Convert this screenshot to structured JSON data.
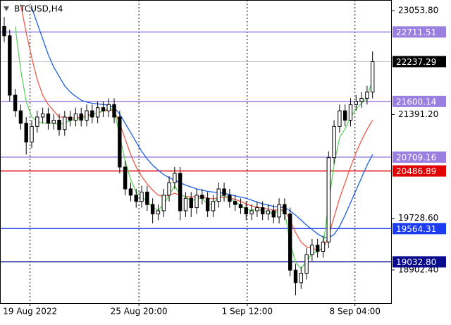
{
  "chart_data": {
    "type": "candlestick",
    "title": "BTCUSD,H4",
    "open": [
      22800,
      22650,
      21700,
      21450,
      21250,
      20950,
      21200,
      21350,
      21400,
      21250,
      21300,
      21150,
      21350,
      21300,
      21400,
      21300,
      21450,
      21350,
      21500,
      21450,
      21550,
      21350,
      20550,
      20200,
      20100,
      20000,
      20150,
      19950,
      19800,
      19850,
      20100,
      20300,
      20450,
      19850,
      20050,
      19900,
      20100,
      20050,
      19850,
      20000,
      20200,
      20100,
      20000,
      19950,
      19900,
      19800,
      19850,
      19900,
      19800,
      19850,
      19750,
      19950,
      19800,
      18900,
      18700,
      18850,
      19150,
      19300,
      19200,
      19350,
      20700,
      21200,
      21450,
      21300,
      21550,
      21600,
      21650,
      21750
    ],
    "high": [
      22950,
      22750,
      21800,
      21550,
      21350,
      21300,
      21450,
      21500,
      21500,
      21400,
      21400,
      21450,
      21450,
      21500,
      21500,
      21550,
      21550,
      21600,
      21600,
      21650,
      21650,
      21450,
      20650,
      20300,
      20200,
      20250,
      20250,
      20050,
      19950,
      20200,
      20400,
      20550,
      20550,
      20150,
      20150,
      20200,
      20200,
      20150,
      20100,
      20300,
      20300,
      20200,
      20100,
      20050,
      20000,
      19950,
      20000,
      20000,
      19950,
      19950,
      20050,
      20050,
      19900,
      19000,
      18950,
      19250,
      19400,
      19400,
      19450,
      20800,
      21300,
      21550,
      21550,
      21650,
      21700,
      21750,
      21850,
      22400
    ],
    "low": [
      22550,
      21600,
      21350,
      21150,
      20750,
      20850,
      21100,
      21250,
      21150,
      21150,
      21050,
      21050,
      21200,
      21200,
      21200,
      21200,
      21250,
      21250,
      21350,
      21350,
      21250,
      20450,
      20100,
      20000,
      19900,
      19900,
      19850,
      19650,
      19700,
      19750,
      20000,
      20200,
      19700,
      19750,
      19750,
      19800,
      19950,
      19750,
      19750,
      19900,
      20000,
      19900,
      19850,
      19800,
      19700,
      19700,
      19750,
      19700,
      19700,
      19650,
      19650,
      19700,
      18800,
      18500,
      18600,
      18750,
      19050,
      19100,
      19100,
      19250,
      20600,
      21100,
      21200,
      21200,
      21450,
      21500,
      21550,
      21650
    ],
    "close": [
      22650,
      21700,
      21450,
      21250,
      20950,
      21200,
      21350,
      21400,
      21250,
      21300,
      21150,
      21350,
      21300,
      21400,
      21300,
      21450,
      21350,
      21500,
      21450,
      21550,
      21350,
      20550,
      20200,
      20100,
      20000,
      20150,
      19950,
      19800,
      19850,
      20100,
      20300,
      20450,
      19850,
      20050,
      19900,
      20100,
      20050,
      19850,
      20000,
      20200,
      20100,
      20000,
      19950,
      19900,
      19800,
      19850,
      19900,
      19800,
      19850,
      19750,
      19950,
      19800,
      18900,
      18700,
      18850,
      19150,
      19300,
      19200,
      19350,
      20700,
      21200,
      21450,
      21300,
      21550,
      21600,
      21650,
      21750,
      22237.29
    ],
    "series": [
      {
        "color": "#1f5fe0",
        "values": [
          null,
          null,
          null,
          null,
          null,
          23100,
          22850,
          22600,
          22350,
          22150,
          22000,
          21850,
          21750,
          21680,
          21620,
          21590,
          21570,
          21560,
          21550,
          21540,
          21500,
          21400,
          21250,
          21100,
          20950,
          20800,
          20680,
          20580,
          20500,
          20430,
          20380,
          20340,
          20300,
          20260,
          20230,
          20200,
          20180,
          20160,
          20150,
          20140,
          20130,
          20110,
          20090,
          20070,
          20050,
          20020,
          19990,
          19960,
          19940,
          19920,
          19910,
          19900,
          19850,
          19780,
          19700,
          19620,
          19550,
          19480,
          19430,
          19420,
          19470,
          19600,
          19780,
          19980,
          20180,
          20380,
          20580,
          20750
        ]
      },
      {
        "color": "#f05a4a",
        "values": [
          null,
          null,
          null,
          23150,
          22700,
          22300,
          21950,
          21700,
          21550,
          21450,
          21350,
          21350,
          21330,
          21340,
          21350,
          21380,
          21390,
          21420,
          21440,
          21470,
          21450,
          21250,
          21000,
          20750,
          20550,
          20400,
          20280,
          20180,
          20100,
          20080,
          20100,
          20130,
          20100,
          20080,
          20070,
          20080,
          20080,
          20050,
          20040,
          20060,
          20070,
          20060,
          20030,
          20000,
          19960,
          19930,
          19910,
          19890,
          19880,
          19860,
          19870,
          19860,
          19700,
          19500,
          19350,
          19270,
          19250,
          19220,
          19230,
          19450,
          19750,
          20050,
          20300,
          20550,
          20780,
          20980,
          21150,
          21300
        ]
      },
      {
        "color": "#5fd35f",
        "values": [
          null,
          null,
          22800,
          22100,
          21600,
          21350,
          21280,
          21250,
          21250,
          21250,
          21230,
          21260,
          21290,
          21320,
          21320,
          21370,
          21380,
          21430,
          21440,
          21500,
          21460,
          21050,
          20650,
          20350,
          20150,
          20080,
          20000,
          19900,
          19860,
          19950,
          20100,
          20250,
          20100,
          20080,
          20000,
          20050,
          20050,
          19950,
          19960,
          20080,
          20100,
          20050,
          19990,
          19940,
          19870,
          19860,
          19880,
          19840,
          19840,
          19790,
          19870,
          19830,
          19350,
          19020,
          18930,
          19040,
          19170,
          19190,
          19270,
          19980,
          20590,
          21020,
          21160,
          21350,
          21480,
          21570,
          21660,
          21950
        ]
      }
    ],
    "levels": [
      {
        "value": 22711.51,
        "color": "#9b7fe0"
      },
      {
        "value": 21600.14,
        "color": "#9b7fe0"
      },
      {
        "value": 20709.16,
        "color": "#9b7fe0"
      },
      {
        "value": 20486.89,
        "color": "#e00000"
      },
      {
        "value": 19564.31,
        "color": "#1d3cf0"
      },
      {
        "value": 19032.8,
        "label": "19032.80",
        "color": "#0a0a8c"
      }
    ],
    "ylim": [
      18372,
      23223
    ],
    "yticks": [
      {
        "value": 23053.8,
        "label": "23053.80"
      },
      {
        "value": 21391.2,
        "label": "21391.20"
      },
      {
        "value": 19728.6,
        "label": "19728.60"
      },
      {
        "value": 18902.4,
        "label": "18902.40"
      }
    ],
    "xlim": [
      -0.77,
      70.5
    ],
    "xticks": [
      {
        "value": 4.7,
        "label": "19 Aug 2022"
      },
      {
        "value": 24.5,
        "label": "25 Aug 20:00"
      },
      {
        "value": 44.2,
        "label": "1 Sep 12:00"
      },
      {
        "value": 63.8,
        "label": "8 Sep 04:00"
      }
    ],
    "grid": true
  }
}
